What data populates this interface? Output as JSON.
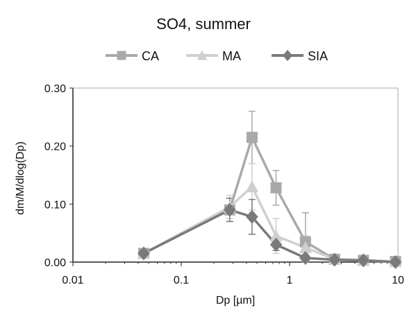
{
  "chart_data": {
    "type": "line",
    "title": "SO4, summer",
    "xlabel": "Dp [µm]",
    "ylabel": "dm/M/dlog(Dp)",
    "x_scale": "log",
    "xlim": [
      0.01,
      10
    ],
    "ylim": [
      0,
      0.3
    ],
    "x_ticks": [
      0.01,
      0.1,
      1,
      10
    ],
    "x_tick_labels": [
      "0.01",
      "0.1",
      "1",
      "10"
    ],
    "y_ticks": [
      0,
      0.1,
      0.2,
      0.3
    ],
    "y_tick_labels": [
      "0.00",
      "0.10",
      "0.20",
      "0.30"
    ],
    "grid": false,
    "legend_position": "top",
    "series": [
      {
        "name": "CA",
        "marker": "square",
        "color": "#a9a9a9",
        "x": [
          0.045,
          0.28,
          0.45,
          0.75,
          1.4,
          2.6,
          4.8,
          9.5
        ],
        "y": [
          0.015,
          0.09,
          0.215,
          0.128,
          0.035,
          0.005,
          0.003,
          0.001
        ],
        "error": [
          0.005,
          0.02,
          0.045,
          0.03,
          0.05,
          0.006,
          0.004,
          0.002
        ]
      },
      {
        "name": "MA",
        "marker": "triangle",
        "color": "#cfcfcf",
        "x": [
          0.045,
          0.28,
          0.45,
          0.75,
          1.4,
          2.6,
          4.8,
          9.5
        ],
        "y": [
          0.015,
          0.095,
          0.13,
          0.045,
          0.025,
          0.005,
          0.003,
          0.001
        ],
        "error": [
          0.005,
          0.02,
          0.04,
          0.03,
          0.02,
          0.005,
          0.004,
          0.002
        ]
      },
      {
        "name": "SIA",
        "marker": "diamond",
        "color": "#7a7a7a",
        "x": [
          0.045,
          0.28,
          0.45,
          0.75,
          1.4,
          2.6,
          4.8,
          9.5
        ],
        "y": [
          0.015,
          0.09,
          0.078,
          0.03,
          0.007,
          0.004,
          0.003,
          0.0
        ],
        "error": [
          0.005,
          0.02,
          0.03,
          0.01,
          0.006,
          0.004,
          0.003,
          0.002
        ]
      }
    ]
  }
}
